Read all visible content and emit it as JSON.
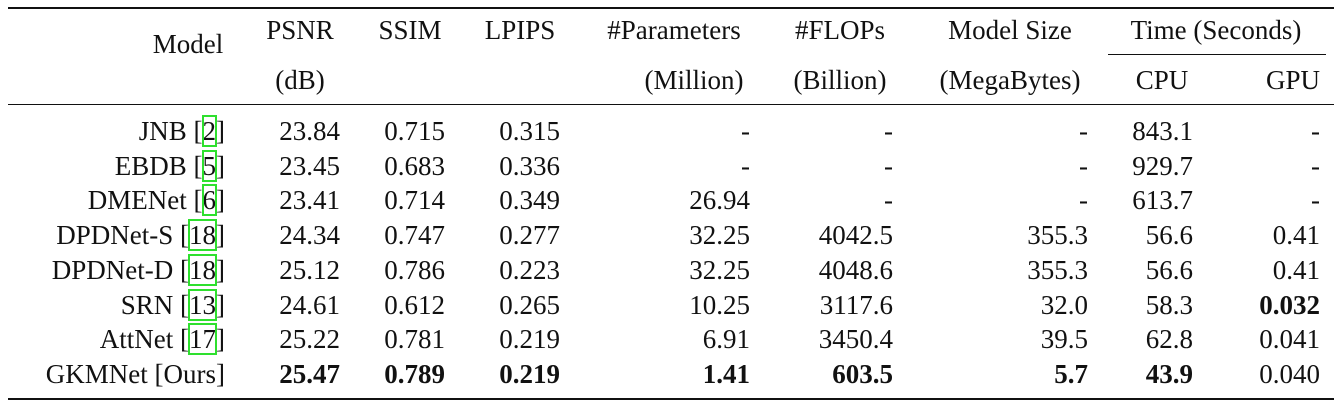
{
  "table": {
    "header": {
      "row1": [
        "Model",
        "PSNR",
        "SSIM",
        "LPIPS",
        "#Parameters",
        "#FLOPs",
        "Model Size",
        "Time (Seconds)"
      ],
      "row2": [
        "(dB)",
        "(Million)",
        "(Billion)",
        "(MegaBytes)",
        "CPU",
        "GPU"
      ]
    },
    "rows": [
      {
        "model": [
          "JNB [",
          "2",
          "]"
        ],
        "cells": [
          "23.84",
          "0.715",
          "0.315",
          "-",
          "-",
          "-",
          "843.1",
          "-"
        ],
        "bold": []
      },
      {
        "model": [
          "EBDB [",
          "5",
          "]"
        ],
        "cells": [
          "23.45",
          "0.683",
          "0.336",
          "-",
          "-",
          "-",
          "929.7",
          "-"
        ],
        "bold": []
      },
      {
        "model": [
          "DMENet [",
          "6",
          "]"
        ],
        "cells": [
          "23.41",
          "0.714",
          "0.349",
          "26.94",
          "-",
          "-",
          "613.7",
          "-"
        ],
        "bold": []
      },
      {
        "model": [
          "DPDNet-S [",
          "18",
          "]"
        ],
        "cells": [
          "24.34",
          "0.747",
          "0.277",
          "32.25",
          "4042.5",
          "355.3",
          "56.6",
          "0.41"
        ],
        "bold": []
      },
      {
        "model": [
          "DPDNet-D [",
          "18",
          "]"
        ],
        "cells": [
          "25.12",
          "0.786",
          "0.223",
          "32.25",
          "4048.6",
          "355.3",
          "56.6",
          "0.41"
        ],
        "bold": []
      },
      {
        "model": [
          "SRN [",
          "13",
          "]"
        ],
        "cells": [
          "24.61",
          "0.612",
          "0.265",
          "10.25",
          "3117.6",
          "32.0",
          "58.3",
          "0.032"
        ],
        "bold": [
          7
        ]
      },
      {
        "model": [
          "AttNet [",
          "17",
          "]"
        ],
        "cells": [
          "25.22",
          "0.781",
          "0.219",
          "6.91",
          "3450.4",
          "39.5",
          "62.8",
          "0.041"
        ],
        "bold": []
      },
      {
        "model": [
          "GKMNet [Ours]"
        ],
        "cells": [
          "25.47",
          "0.789",
          "0.219",
          "1.41",
          "603.5",
          "5.7",
          "43.9",
          "0.040"
        ],
        "bold": [
          0,
          1,
          2,
          3,
          4,
          5,
          6
        ]
      }
    ]
  }
}
